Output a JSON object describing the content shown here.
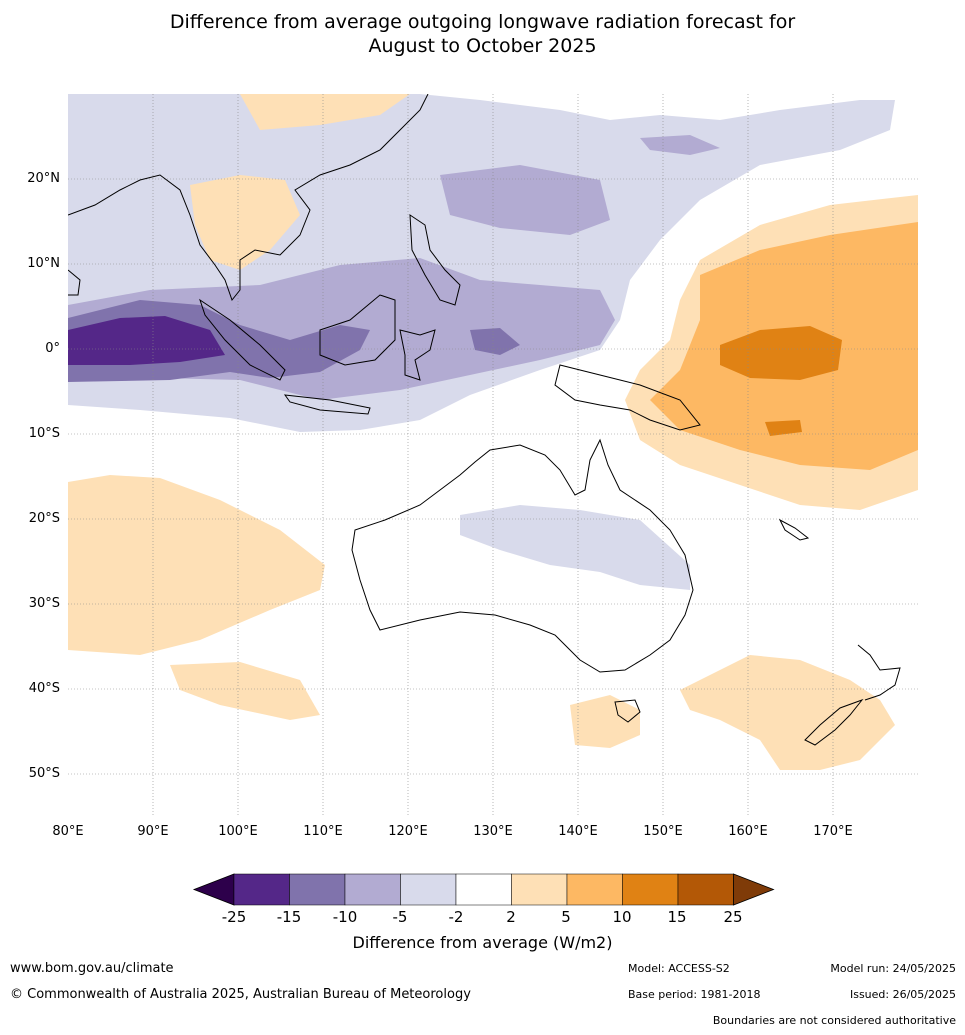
{
  "title_line1": "Difference from average outgoing longwave radiation forecast for",
  "title_line2": "August to October 2025",
  "map": {
    "lon_ticks": [
      "80°E",
      "90°E",
      "100°E",
      "110°E",
      "120°E",
      "130°E",
      "140°E",
      "150°E",
      "160°E",
      "170°E"
    ],
    "lat_ticks": [
      "20°N",
      "10°N",
      "0°",
      "10°S",
      "20°S",
      "30°S",
      "40°S",
      "50°S"
    ],
    "lon_range": [
      80,
      180
    ],
    "lat_range": [
      -55,
      30
    ],
    "grid": true
  },
  "colorbar": {
    "ticks": [
      "-25",
      "-15",
      "-10",
      "-5",
      "-2",
      "2",
      "5",
      "10",
      "15",
      "25"
    ],
    "colors": [
      "#542788",
      "#8073ac",
      "#b2abd2",
      "#d8daeb",
      "#ffffff",
      "#fee0b6",
      "#fdb863",
      "#e08214",
      "#b35806"
    ],
    "under_color": "#2d004b",
    "over_color": "#7f3b08",
    "label": "Difference from average (W/m2)"
  },
  "footer": {
    "website": "www.bom.gov.au/climate",
    "copyright": "© Commonwealth of Australia 2025, Australian Bureau of Meteorology",
    "model": "Model: ACCESS-S2",
    "base_period": "Base period: 1981-2018",
    "model_run": "Model run: 24/05/2025",
    "issued": "Issued: 26/05/2025",
    "disclaimer": "Boundaries are not considered authoritative"
  }
}
